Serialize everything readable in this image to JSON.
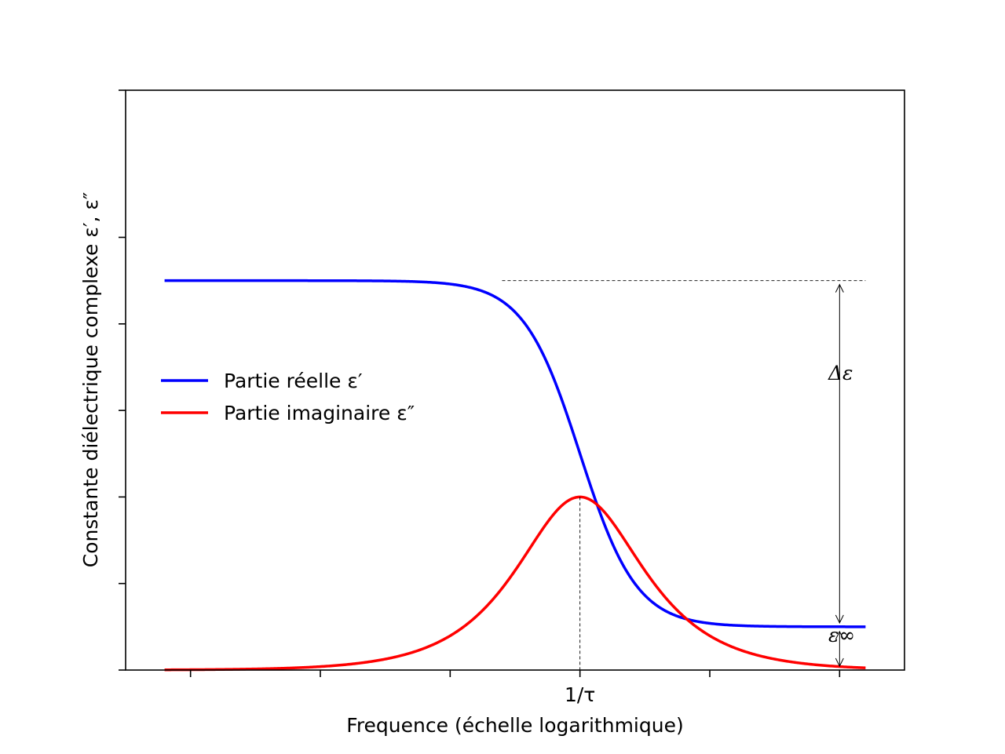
{
  "chart_data": {
    "type": "line",
    "xlabel": "Frequence (échelle logarithmique)",
    "ylabel": "Constante diélectrique complexe ε′, ε″",
    "x_scale": "log",
    "x_range_decades": [
      -3.5,
      2.5
    ],
    "y_range": [
      0,
      6.7
    ],
    "grid": false,
    "legend_placement": "center-left",
    "x_tick_decades": [
      -3,
      -2,
      -1,
      0,
      1,
      2
    ],
    "x_tick_labels": [
      "",
      "",
      "",
      "1/τ",
      "",
      ""
    ],
    "y_tick_values": [
      0,
      1,
      2,
      3,
      4,
      5
    ],
    "eps_inf": 0.5,
    "delta_eps": 4.0,
    "series": [
      {
        "name": "Partie réelle ε′",
        "color": "#0000ff",
        "formula": "eps_inf + delta_eps / (1 + (omega*tau)^2)"
      },
      {
        "name": "Partie imaginaire ε″",
        "color": "#ff0000",
        "formula": "delta_eps * (omega*tau) / (1 + (omega*tau)^2)"
      }
    ],
    "annotations": [
      {
        "text": "Δε"
      },
      {
        "text": "ε∞"
      }
    ]
  }
}
